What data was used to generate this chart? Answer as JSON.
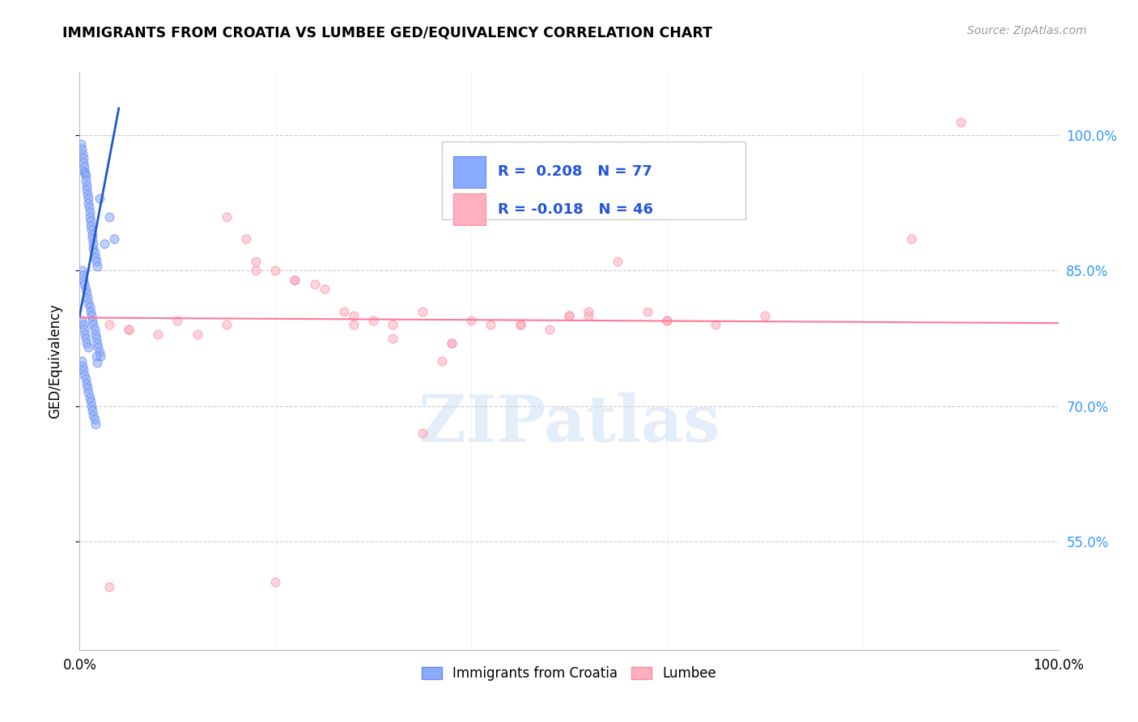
{
  "title": "IMMIGRANTS FROM CROATIA VS LUMBEE GED/EQUIVALENCY CORRELATION CHART",
  "source": "Source: ZipAtlas.com",
  "ylabel": "GED/Equivalency",
  "legend_entry1_label": "Immigrants from Croatia",
  "legend_entry2_label": "Lumbee",
  "r1": 0.208,
  "n1": 77,
  "r2": -0.018,
  "n2": 46,
  "blue_color": "#88AAFF",
  "blue_edge_color": "#6688EE",
  "pink_color": "#FFB0C0",
  "pink_edge_color": "#FF8899",
  "trendline1_color": "#2255CC",
  "trendline2_color": "#FF7799",
  "watermark": "ZIPatlas",
  "blue_dots_x": [
    0.15,
    0.25,
    0.3,
    0.35,
    0.4,
    0.45,
    0.5,
    0.55,
    0.6,
    0.65,
    0.7,
    0.75,
    0.8,
    0.85,
    0.9,
    0.95,
    1.0,
    1.05,
    1.1,
    1.15,
    1.2,
    1.25,
    1.3,
    1.35,
    1.4,
    1.5,
    1.6,
    1.7,
    1.8,
    2.0,
    0.2,
    0.3,
    0.4,
    0.5,
    0.6,
    0.7,
    0.8,
    0.9,
    1.0,
    1.1,
    1.2,
    1.3,
    1.4,
    1.5,
    1.6,
    1.7,
    1.8,
    1.9,
    2.0,
    2.1,
    0.2,
    0.3,
    0.4,
    0.5,
    0.6,
    0.7,
    0.8,
    0.9,
    1.0,
    1.1,
    1.2,
    1.3,
    1.4,
    1.5,
    1.6,
    1.7,
    1.8,
    2.5,
    3.0,
    3.5,
    0.25,
    0.35,
    0.45,
    0.55,
    0.65,
    0.75,
    0.85
  ],
  "blue_dots_y": [
    99.0,
    98.5,
    98.0,
    97.5,
    97.0,
    96.5,
    96.0,
    95.8,
    95.5,
    95.0,
    94.5,
    94.0,
    93.5,
    93.0,
    92.5,
    92.0,
    91.5,
    91.0,
    90.5,
    90.0,
    89.5,
    89.0,
    88.5,
    88.0,
    87.5,
    87.0,
    86.5,
    86.0,
    85.5,
    93.0,
    85.0,
    84.5,
    84.0,
    83.5,
    83.0,
    82.5,
    82.0,
    81.5,
    81.0,
    80.5,
    80.0,
    79.5,
    79.0,
    78.5,
    78.0,
    77.5,
    77.0,
    76.5,
    76.0,
    75.5,
    75.0,
    74.5,
    74.0,
    73.5,
    73.0,
    72.5,
    72.0,
    71.5,
    71.0,
    70.5,
    70.0,
    69.5,
    69.0,
    68.5,
    68.0,
    75.5,
    74.8,
    88.0,
    91.0,
    88.5,
    79.5,
    79.0,
    78.5,
    78.0,
    77.5,
    77.0,
    76.5
  ],
  "pink_dots_x": [
    3.0,
    5.0,
    10.0,
    12.0,
    15.0,
    17.0,
    18.0,
    20.0,
    22.0,
    24.0,
    25.0,
    27.0,
    28.0,
    30.0,
    32.0,
    35.0,
    37.0,
    38.0,
    40.0,
    42.0,
    45.0,
    48.0,
    50.0,
    52.0,
    55.0,
    58.0,
    60.0,
    65.0,
    70.0,
    3.0,
    20.0,
    35.0,
    50.0,
    60.0,
    90.0,
    85.0,
    5.0,
    8.0,
    15.0,
    18.0,
    22.0,
    28.0,
    32.0,
    38.0,
    45.0,
    52.0
  ],
  "pink_dots_y": [
    79.0,
    78.5,
    79.5,
    78.0,
    91.0,
    88.5,
    86.0,
    85.0,
    84.0,
    83.5,
    83.0,
    80.5,
    80.0,
    79.5,
    79.0,
    80.5,
    75.0,
    77.0,
    79.5,
    79.0,
    79.0,
    78.5,
    80.0,
    80.5,
    86.0,
    80.5,
    79.5,
    79.0,
    80.0,
    50.0,
    50.5,
    67.0,
    80.0,
    79.5,
    101.5,
    88.5,
    78.5,
    78.0,
    79.0,
    85.0,
    84.0,
    79.0,
    77.5,
    77.0,
    79.0,
    80.0
  ]
}
